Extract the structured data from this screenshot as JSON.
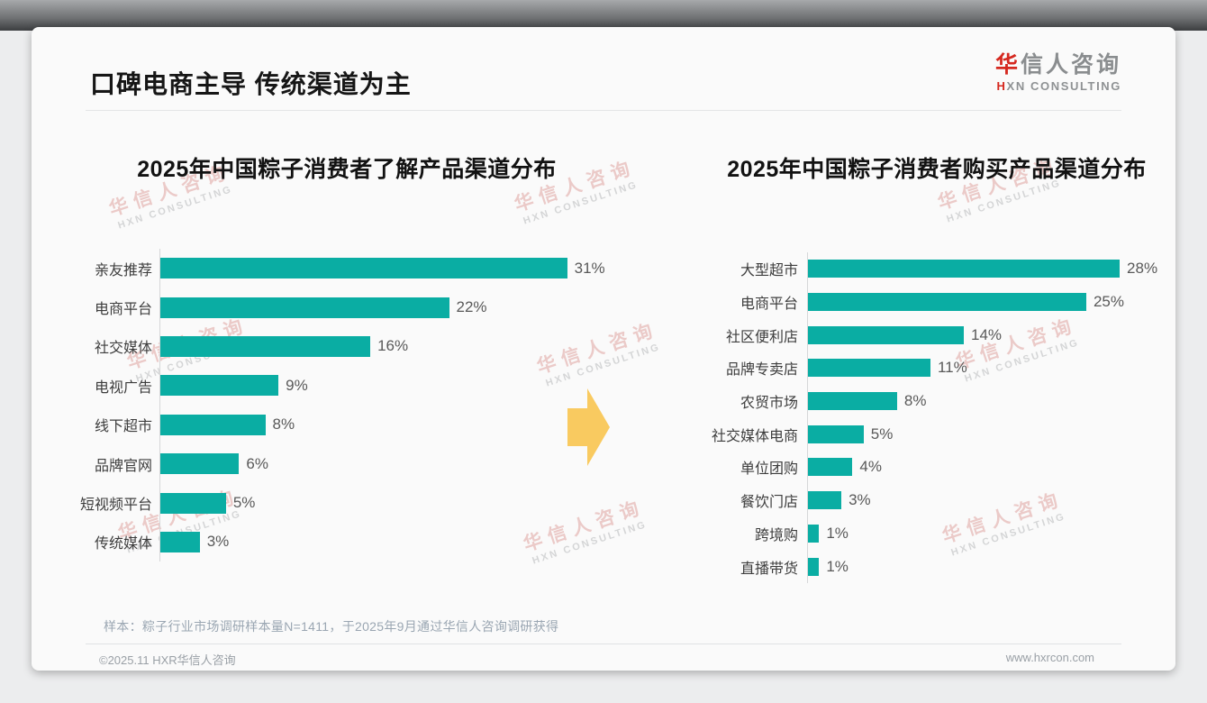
{
  "header": {
    "title": "口碑电商主导 传统渠道为主"
  },
  "logo": {
    "cn_first": "华",
    "cn_rest": "信人咨询",
    "en_first": "H",
    "en_rest": "XN CONSULTING",
    "red_color": "#d5281f"
  },
  "watermark": {
    "line1": "华信人咨询",
    "line2": "HXN CONSULTING"
  },
  "arrow_icon_color": "#f9ca60",
  "accent_color": "#0aada3",
  "chart_data": [
    {
      "type": "bar",
      "orientation": "horizontal",
      "title": "2025年中国粽子消费者了解产品渠道分布",
      "categories": [
        "亲友推荐",
        "电商平台",
        "社交媒体",
        "电视广告",
        "线下超市",
        "品牌官网",
        "短视频平台",
        "传统媒体"
      ],
      "values": [
        31,
        22,
        16,
        9,
        8,
        6,
        5,
        3
      ],
      "unit": "%",
      "xlim": [
        0,
        34.8
      ],
      "bar_color": "#0aada3",
      "grid": false,
      "legend": false,
      "value_labels": "outside-end"
    },
    {
      "type": "bar",
      "orientation": "horizontal",
      "title": "2025年中国粽子消费者购买产品渠道分布",
      "categories": [
        "大型超市",
        "电商平台",
        "社区便利店",
        "品牌专卖店",
        "农贸市场",
        "社交媒体电商",
        "单位团购",
        "餐饮门店",
        "跨境购",
        "直播带货"
      ],
      "values": [
        28,
        25,
        14,
        11,
        8,
        5,
        4,
        3,
        1,
        1
      ],
      "unit": "%",
      "xlim": [
        0,
        31.8
      ],
      "bar_color": "#0aada3",
      "grid": false,
      "legend": false,
      "value_labels": "outside-end"
    }
  ],
  "footer": {
    "note": "样本：粽子行业市场调研样本量N=1411，于2025年9月通过华信人咨询调研获得",
    "copyright": "©2025.11 HXR华信人咨询",
    "website": "www.hxrcon.com"
  }
}
